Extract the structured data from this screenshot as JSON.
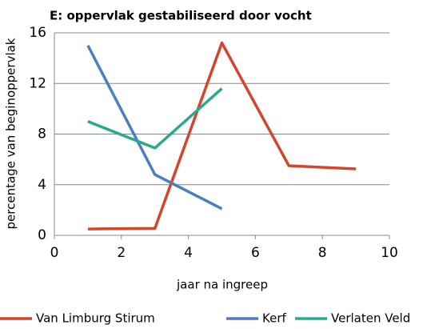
{
  "chart_data": {
    "type": "line",
    "title": "E: oppervlak gestabiliseerd door vocht",
    "xlabel": "jaar na ingreep",
    "ylabel": "percentage van beginoppervlak",
    "xlim": [
      0,
      10
    ],
    "xticks": [
      0,
      2,
      4,
      6,
      8,
      10
    ],
    "ylim": [
      0,
      16
    ],
    "yticks": [
      0,
      4,
      8,
      12,
      16
    ],
    "grid": true,
    "legend": "bottom",
    "series": [
      {
        "name": "Van Limburg Stirum",
        "color": "#d4452b",
        "x": [
          1,
          3,
          5,
          7,
          9
        ],
        "values": [
          0.5,
          0.55,
          15.2,
          5.5,
          5.25
        ]
      },
      {
        "name": "Kerf",
        "color": "#4b7fc1",
        "x": [
          1,
          3,
          5
        ],
        "values": [
          15,
          4.8,
          2.1
        ]
      },
      {
        "name": "Verlaten Veld",
        "color": "#2ba98b",
        "x": [
          1,
          3,
          5
        ],
        "values": [
          9,
          6.9,
          11.6
        ]
      }
    ]
  }
}
